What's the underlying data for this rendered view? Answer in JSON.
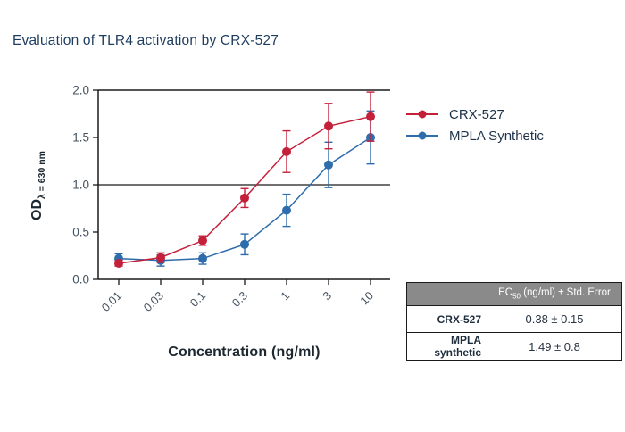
{
  "title": "Evaluation of TLR4 activation by CRX-527",
  "chart_data": {
    "type": "line",
    "x_values": [
      0.01,
      0.03,
      0.1,
      0.3,
      1,
      3,
      10
    ],
    "x_tick_labels": [
      "0.01",
      "0.03",
      "0.1",
      "0.3",
      "1",
      "3",
      "10"
    ],
    "xlabel": "Concentration (ng/ml)",
    "ylabel_main": "OD",
    "ylabel_sub": "λ = 630 nm",
    "ylim": [
      0,
      2
    ],
    "y_tick_labels": [
      "0.0",
      "0.5",
      "1.0",
      "1.5",
      "2.0"
    ],
    "reference_line": 1.0,
    "x_scale": "log",
    "legend_position": "upper-right-outside",
    "series": [
      {
        "name": "CRX-527",
        "color": "#c4203a",
        "values": [
          0.17,
          0.23,
          0.41,
          0.86,
          1.35,
          1.62,
          1.72
        ],
        "errors": [
          0.03,
          0.05,
          0.05,
          0.1,
          0.22,
          0.24,
          0.26
        ]
      },
      {
        "name": "MPLA Synthetic",
        "color": "#2e6cab",
        "values": [
          0.22,
          0.2,
          0.22,
          0.37,
          0.73,
          1.21,
          1.5
        ],
        "errors": [
          0.05,
          0.06,
          0.06,
          0.11,
          0.17,
          0.24,
          0.28
        ]
      }
    ]
  },
  "table": {
    "header": {
      "prefix": "EC",
      "sub": "50",
      "suffix": " (ng/ml) ± Std. Error"
    },
    "rows": [
      {
        "label": "CRX-527",
        "value": "0.38 ± 0.15"
      },
      {
        "label": "MPLA synthetic",
        "value": "1.49 ± 0.8"
      }
    ]
  },
  "colors": {
    "axis": "#1a1a1a",
    "tick_label": "#45525f",
    "table_header_bg": "#8a8a8a",
    "title_text": "#1d3c5e"
  }
}
